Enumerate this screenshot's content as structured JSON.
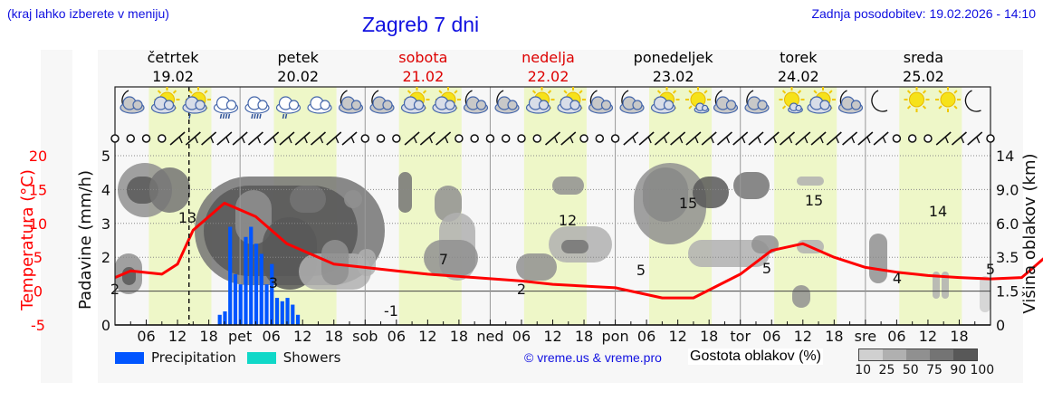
{
  "header": {
    "left_note": "(kraj lahko izberete v meniju)",
    "title": "Zagreb 7 dni",
    "last_update": "Zadnja posodobitev: 19.02.2026 - 14:10"
  },
  "days": [
    {
      "name": "četrtek",
      "date": "19.02",
      "weekend": false
    },
    {
      "name": "petek",
      "date": "20.02",
      "weekend": false
    },
    {
      "name": "sobota",
      "date": "21.02",
      "weekend": true
    },
    {
      "name": "nedelja",
      "date": "22.02",
      "weekend": true
    },
    {
      "name": "ponedeljek",
      "date": "23.02",
      "weekend": false
    },
    {
      "name": "torek",
      "date": "24.02",
      "weekend": false
    },
    {
      "name": "sreda",
      "date": "25.02",
      "weekend": false
    }
  ],
  "colors": {
    "weekday": "#000000",
    "weekend": "#dd0000",
    "temperature": "#ff0000",
    "precipitation": "#0055ff",
    "showers": "#10d8c8",
    "day_band": "#eef7c8",
    "link": "#1010e0"
  },
  "legend": {
    "precipitation": "Precipitation",
    "showers": "Showers",
    "copyright": "© vreme.us & vreme.pro",
    "density_label": "Gostota oblakov (%)",
    "density_ticks": [
      "10",
      "25",
      "50",
      "75",
      "90",
      "100"
    ],
    "density_colors": [
      "#d0d0d0",
      "#b0b0b0",
      "#909090",
      "#747474",
      "#585858"
    ]
  },
  "chart_data": {
    "type": "line",
    "title": "Zagreb 7 dni",
    "left_axis_outer": {
      "label": "Temperatura (°C)",
      "ticks": [
        "20",
        "15",
        "10",
        "5",
        "0",
        "-5"
      ],
      "range": [
        -5,
        20
      ],
      "color": "#ff0000"
    },
    "left_axis_inner": {
      "label": "Padavine (mm/h)",
      "ticks": [
        "5",
        "4",
        "3",
        "2",
        "1",
        "0"
      ],
      "range": [
        0,
        5
      ]
    },
    "right_axis": {
      "label": "Višina oblakov (km)",
      "ticks": [
        "14",
        "9.0",
        "6.0",
        "3.5",
        "1.5",
        "0"
      ]
    },
    "x_ticks": [
      "06",
      "12",
      "18",
      "pet",
      "06",
      "12",
      "18",
      "sob",
      "06",
      "12",
      "18",
      "ned",
      "06",
      "12",
      "18",
      "pon",
      "06",
      "12",
      "18",
      "tor",
      "06",
      "12",
      "18",
      "sre",
      "06",
      "12",
      "18"
    ],
    "current_time_marker": "19.02 14:10",
    "grid": true,
    "series": [
      {
        "name": "Temperatura",
        "unit": "°C",
        "x_hours": [
          0,
          3,
          9,
          12,
          15,
          21,
          27,
          33,
          42,
          54,
          60,
          69,
          78,
          84,
          96,
          105,
          111,
          120,
          126,
          132,
          138,
          144,
          150,
          156,
          162,
          168,
          174,
          180,
          186,
          192,
          198,
          204,
          210,
          216,
          222,
          228,
          234,
          240,
          246,
          252,
          258,
          264,
          270,
          276,
          282,
          288,
          294,
          300,
          306,
          312,
          318,
          324,
          330,
          336,
          342,
          348,
          354,
          360,
          366,
          372,
          378,
          384,
          390,
          396,
          402,
          408,
          414,
          420
        ],
        "values": [
          2,
          3,
          2.5,
          4,
          9,
          13,
          11,
          7,
          4,
          3,
          2.5,
          2,
          1.5,
          1,
          0.5,
          -1,
          -1,
          2.5,
          6,
          7,
          5,
          3.5,
          2.8,
          2.3,
          2,
          1.8,
          2,
          6,
          11,
          12,
          9,
          7,
          5.5,
          5,
          4.8,
          9,
          13.5,
          15,
          12,
          9,
          7.5,
          6.5,
          5.5,
          5,
          9,
          13.5,
          15,
          14,
          10,
          8,
          6,
          4,
          3.5,
          4,
          9,
          13,
          14,
          12,
          9,
          6,
          5,
          4,
          4,
          4.5,
          5,
          5,
          5,
          5
        ],
        "labels": [
          {
            "text": "2",
            "x_hour": 0
          },
          {
            "text": "13",
            "x_hour": 14
          },
          {
            "text": "3",
            "x_hour": 30
          },
          {
            "text": "-1",
            "x_hour": 54
          },
          {
            "text": "7",
            "x_hour": 63
          },
          {
            "text": "2",
            "x_hour": 78
          },
          {
            "text": "12",
            "x_hour": 87
          },
          {
            "text": "5",
            "x_hour": 102
          },
          {
            "text": "15",
            "x_hour": 111
          },
          {
            "text": "5",
            "x_hour": 126
          },
          {
            "text": "15",
            "x_hour": 135
          },
          {
            "text": "4",
            "x_hour": 150
          },
          {
            "text": "14",
            "x_hour": 159
          },
          {
            "text": "5",
            "x_hour": 168
          }
        ]
      },
      {
        "name": "Precipitation",
        "unit": "mm/h",
        "type": "bar",
        "x_hours": [
          18,
          19,
          20,
          21,
          22,
          23,
          24,
          25,
          26,
          27,
          28,
          29,
          30,
          31,
          32,
          33
        ],
        "values": [
          0.3,
          0.4,
          2.9,
          1.5,
          1.2,
          2.6,
          2.9,
          2.4,
          2.1,
          1.2,
          1.8,
          0.8,
          0.7,
          0.8,
          0.6,
          0.3
        ]
      }
    ]
  }
}
